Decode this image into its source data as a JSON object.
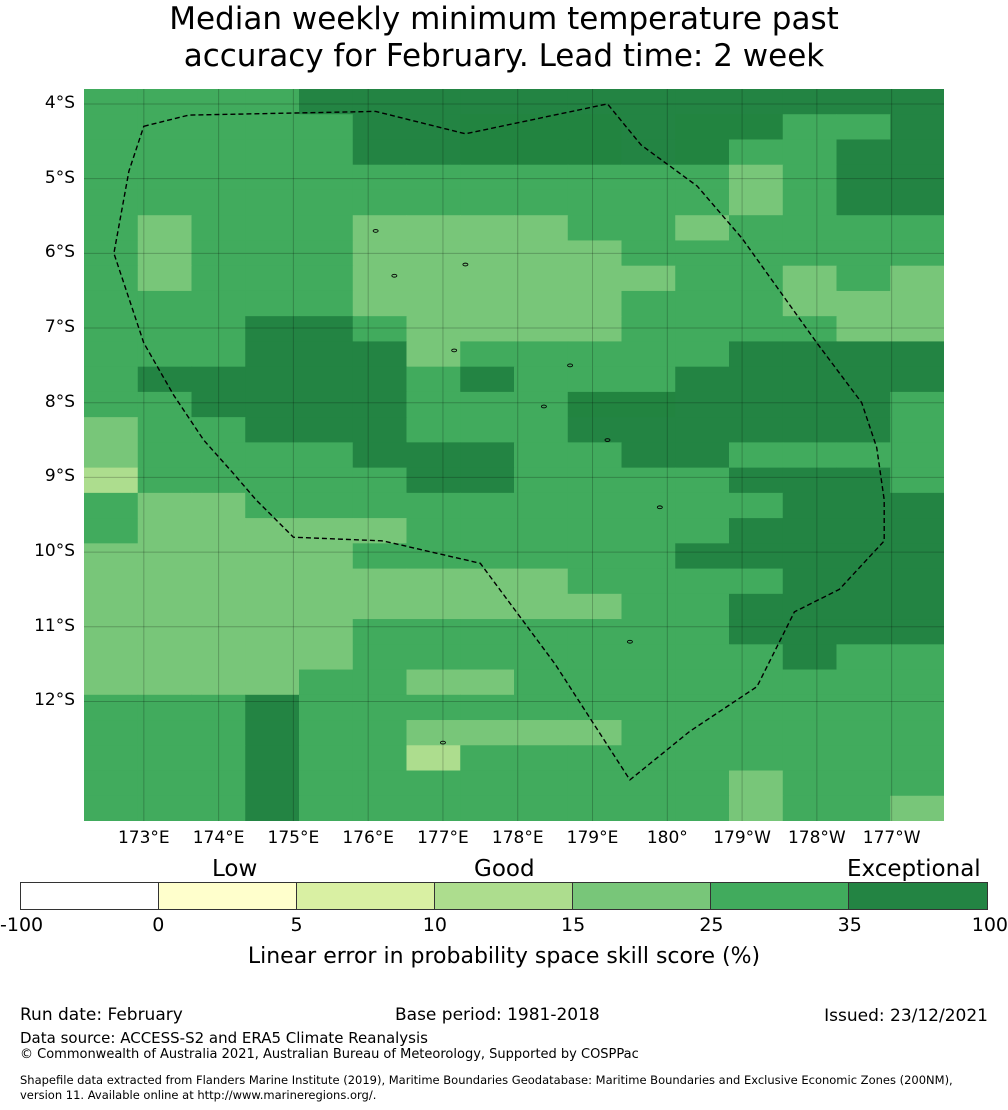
{
  "title": {
    "line1": "Median weekly minimum temperature past",
    "line2": "accuracy for February. Lead time: 2 week"
  },
  "map": {
    "lat_ticks": [
      "4°S",
      "5°S",
      "6°S",
      "7°S",
      "8°S",
      "9°S",
      "10°S",
      "11°S",
      "12°S"
    ],
    "lon_ticks": [
      "173°E",
      "174°E",
      "175°E",
      "176°E",
      "177°E",
      "178°E",
      "179°E",
      "180°",
      "179°W",
      "178°W",
      "177°W"
    ],
    "grid": [
      "2222333333333333",
      "2222233444344223",
      "2222233444342233",
      "2222222222221233",
      "2222222222221233",
      "2122211112212222",
      "2122211111222222",
      "2122211111122121",
      "2222211111222111",
      "2223321111222211",
      "2223331222223333",
      "2333332322233333",
      "2233332224433332",
      "1223332223333332",
      "1222233322332222",
      "0222223322223332",
      "2112222222222333",
      "2111112222223333",
      "1111122222233333",
      "1111111112222333",
      "1111111111223333",
      "1111122222223333",
      "1111122222222322",
      "1111221122222222",
      "2223222222222222",
      "2223221111222222",
      "2223220222222222",
      "2223222222221222",
      "2223222222221221"
    ],
    "outline_lonlat": [
      [
        173.0,
        -4.3
      ],
      [
        173.6,
        -4.15
      ],
      [
        176.1,
        -4.1
      ],
      [
        177.3,
        -4.4
      ],
      [
        179.2,
        -4.0
      ],
      [
        179.65,
        -4.55
      ],
      [
        -179.6,
        -5.1
      ],
      [
        -179.0,
        -5.8
      ],
      [
        -178.5,
        -6.5
      ],
      [
        -178.0,
        -7.2
      ],
      [
        -177.4,
        -8.0
      ],
      [
        -177.2,
        -8.6
      ],
      [
        -177.1,
        -9.3
      ],
      [
        -177.1,
        -9.85
      ],
      [
        -177.7,
        -10.5
      ],
      [
        -178.3,
        -10.8
      ],
      [
        -178.8,
        -11.8
      ],
      [
        -179.7,
        -12.4
      ],
      [
        179.5,
        -13.05
      ],
      [
        178.5,
        -11.5
      ],
      [
        177.5,
        -10.15
      ],
      [
        176.2,
        -9.85
      ],
      [
        175.0,
        -9.8
      ],
      [
        174.5,
        -9.3
      ],
      [
        174.2,
        -8.95
      ],
      [
        173.8,
        -8.5
      ],
      [
        173.4,
        -7.9
      ],
      [
        173.0,
        -7.2
      ],
      [
        172.6,
        -6.0
      ],
      [
        172.8,
        -4.9
      ]
    ],
    "islands_lonlat": [
      [
        176.1,
        -5.7
      ],
      [
        176.35,
        -6.3
      ],
      [
        177.3,
        -6.15
      ],
      [
        177.15,
        -7.3
      ],
      [
        178.7,
        -7.5
      ],
      [
        178.35,
        -8.05
      ],
      [
        179.2,
        -8.5
      ],
      [
        179.9,
        -9.4
      ],
      [
        179.5,
        -11.2
      ],
      [
        177.0,
        -12.55
      ]
    ]
  },
  "colorbar": {
    "categories": [
      "Low",
      "Good",
      "Exceptional"
    ],
    "colors": [
      "#ffffff",
      "#ffffcc",
      "#d9f0a3",
      "#addd8e",
      "#78c679",
      "#41ab5d",
      "#238443"
    ],
    "ticks": [
      "-100",
      "0",
      "5",
      "10",
      "15",
      "25",
      "35",
      "100"
    ],
    "label": "Linear error in probability space skill score (%)"
  },
  "cell_colors": [
    "#addd8e",
    "#78c679",
    "#41ab5d",
    "#238443",
    "#228440"
  ],
  "footer": {
    "run_date": "Run date: February",
    "base_period": "Base period: 1981-2018",
    "issued": "Issued: 23/12/2021",
    "data_source": "Data source: ACCESS-S2 and ERA5 Climate Reanalysis",
    "copyright": "© Commonwealth of Australia 2021, Australian Bureau of Meteorology, Supported by COSPPac",
    "shapefile_line1": "Shapefile data extracted from Flanders Marine Institute (2019), Maritime Boundaries Geodatabase: Maritime Boundaries and Exclusive Economic Zones (200NM),",
    "shapefile_line2": "version 11. Available online at http://www.marineregions.org/."
  }
}
